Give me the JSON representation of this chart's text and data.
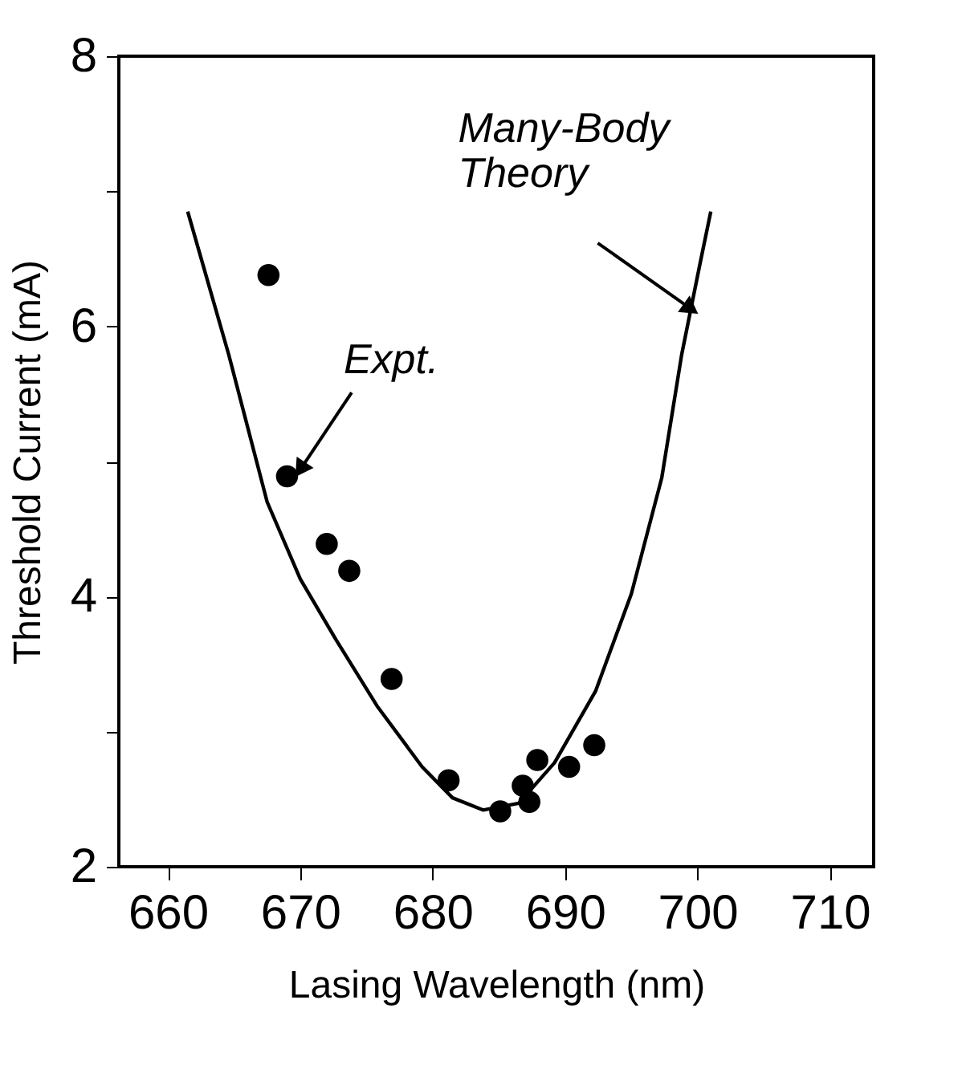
{
  "chart_data": {
    "type": "scatter",
    "xlabel": "Lasing Wavelength (nm)",
    "ylabel": "Threshold Current  (mA)",
    "xlim": [
      656.3,
      713.3
    ],
    "xticks": [
      660,
      670,
      680,
      690,
      700,
      710
    ],
    "ylim": [
      2,
      8
    ],
    "yticks": [
      2,
      {
        "value": 3,
        "label": null
      },
      4,
      {
        "value": 5,
        "label": null
      },
      6,
      {
        "value": 7,
        "label": null
      },
      8
    ],
    "grid": false,
    "series": [
      {
        "marker": "circle",
        "color": "#000000",
        "x": [
          667.6,
          669.0,
          672.0,
          673.7,
          676.9,
          681.2,
          685.1,
          686.8,
          687.3,
          687.9,
          690.3,
          692.2
        ],
        "values": [
          6.38,
          4.89,
          4.39,
          4.19,
          3.39,
          2.64,
          2.41,
          2.6,
          2.48,
          2.79,
          2.74,
          2.9
        ]
      },
      {
        "type": "line",
        "color": "#000000",
        "line_style": "solid",
        "marker": "none",
        "x": [
          661.5,
          664.6,
          667.5,
          670.0,
          672.7,
          675.8,
          679.2,
          681.5,
          683.8,
          686.5,
          689.2,
          692.3,
          695.0,
          697.3,
          698.8,
          700.2,
          701.0
        ],
        "values": [
          6.85,
          5.79,
          4.7,
          4.13,
          3.68,
          3.19,
          2.74,
          2.51,
          2.42,
          2.47,
          2.77,
          3.3,
          4.02,
          4.88,
          5.79,
          6.47,
          6.85
        ]
      }
    ],
    "annotations": [
      {
        "text": "Many-Body\nTheory",
        "x": 699.5,
        "y": 6.13
      },
      {
        "text": "Expt.",
        "x": 670.0,
        "y": 4.94
      }
    ]
  }
}
